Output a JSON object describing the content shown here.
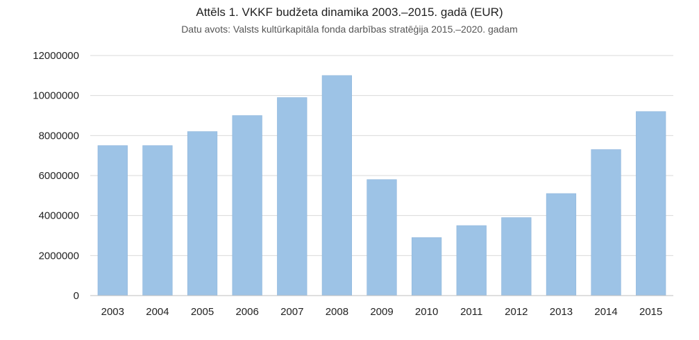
{
  "chart_data": {
    "type": "bar",
    "title": "Attēls 1. VKKF budžeta dinamika 2003.–2015. gadā (EUR)",
    "subtitle": "Datu avots: Valsts kultūrkapitāla fonda darbības stratēģija 2015.–2020. gadam",
    "xlabel": "",
    "ylabel": "",
    "categories": [
      "2003",
      "2004",
      "2005",
      "2006",
      "2007",
      "2008",
      "2009",
      "2010",
      "2011",
      "2012",
      "2013",
      "2014",
      "2015"
    ],
    "values": [
      7500000,
      7500000,
      8200000,
      9000000,
      9900000,
      11000000,
      5800000,
      2900000,
      3500000,
      3900000,
      5100000,
      7300000,
      9200000
    ],
    "ylim": [
      0,
      12000000
    ],
    "yticks": [
      "0",
      "2000000",
      "4000000",
      "6000000",
      "8000000",
      "10000000",
      "12000000"
    ],
    "grid": true,
    "legend": "none",
    "bar_color": "#9dc3e6",
    "bar_edge_color": "#8fb6dc",
    "grid_color": "#d9d9d9",
    "axis_color": "#bfbfbf"
  }
}
